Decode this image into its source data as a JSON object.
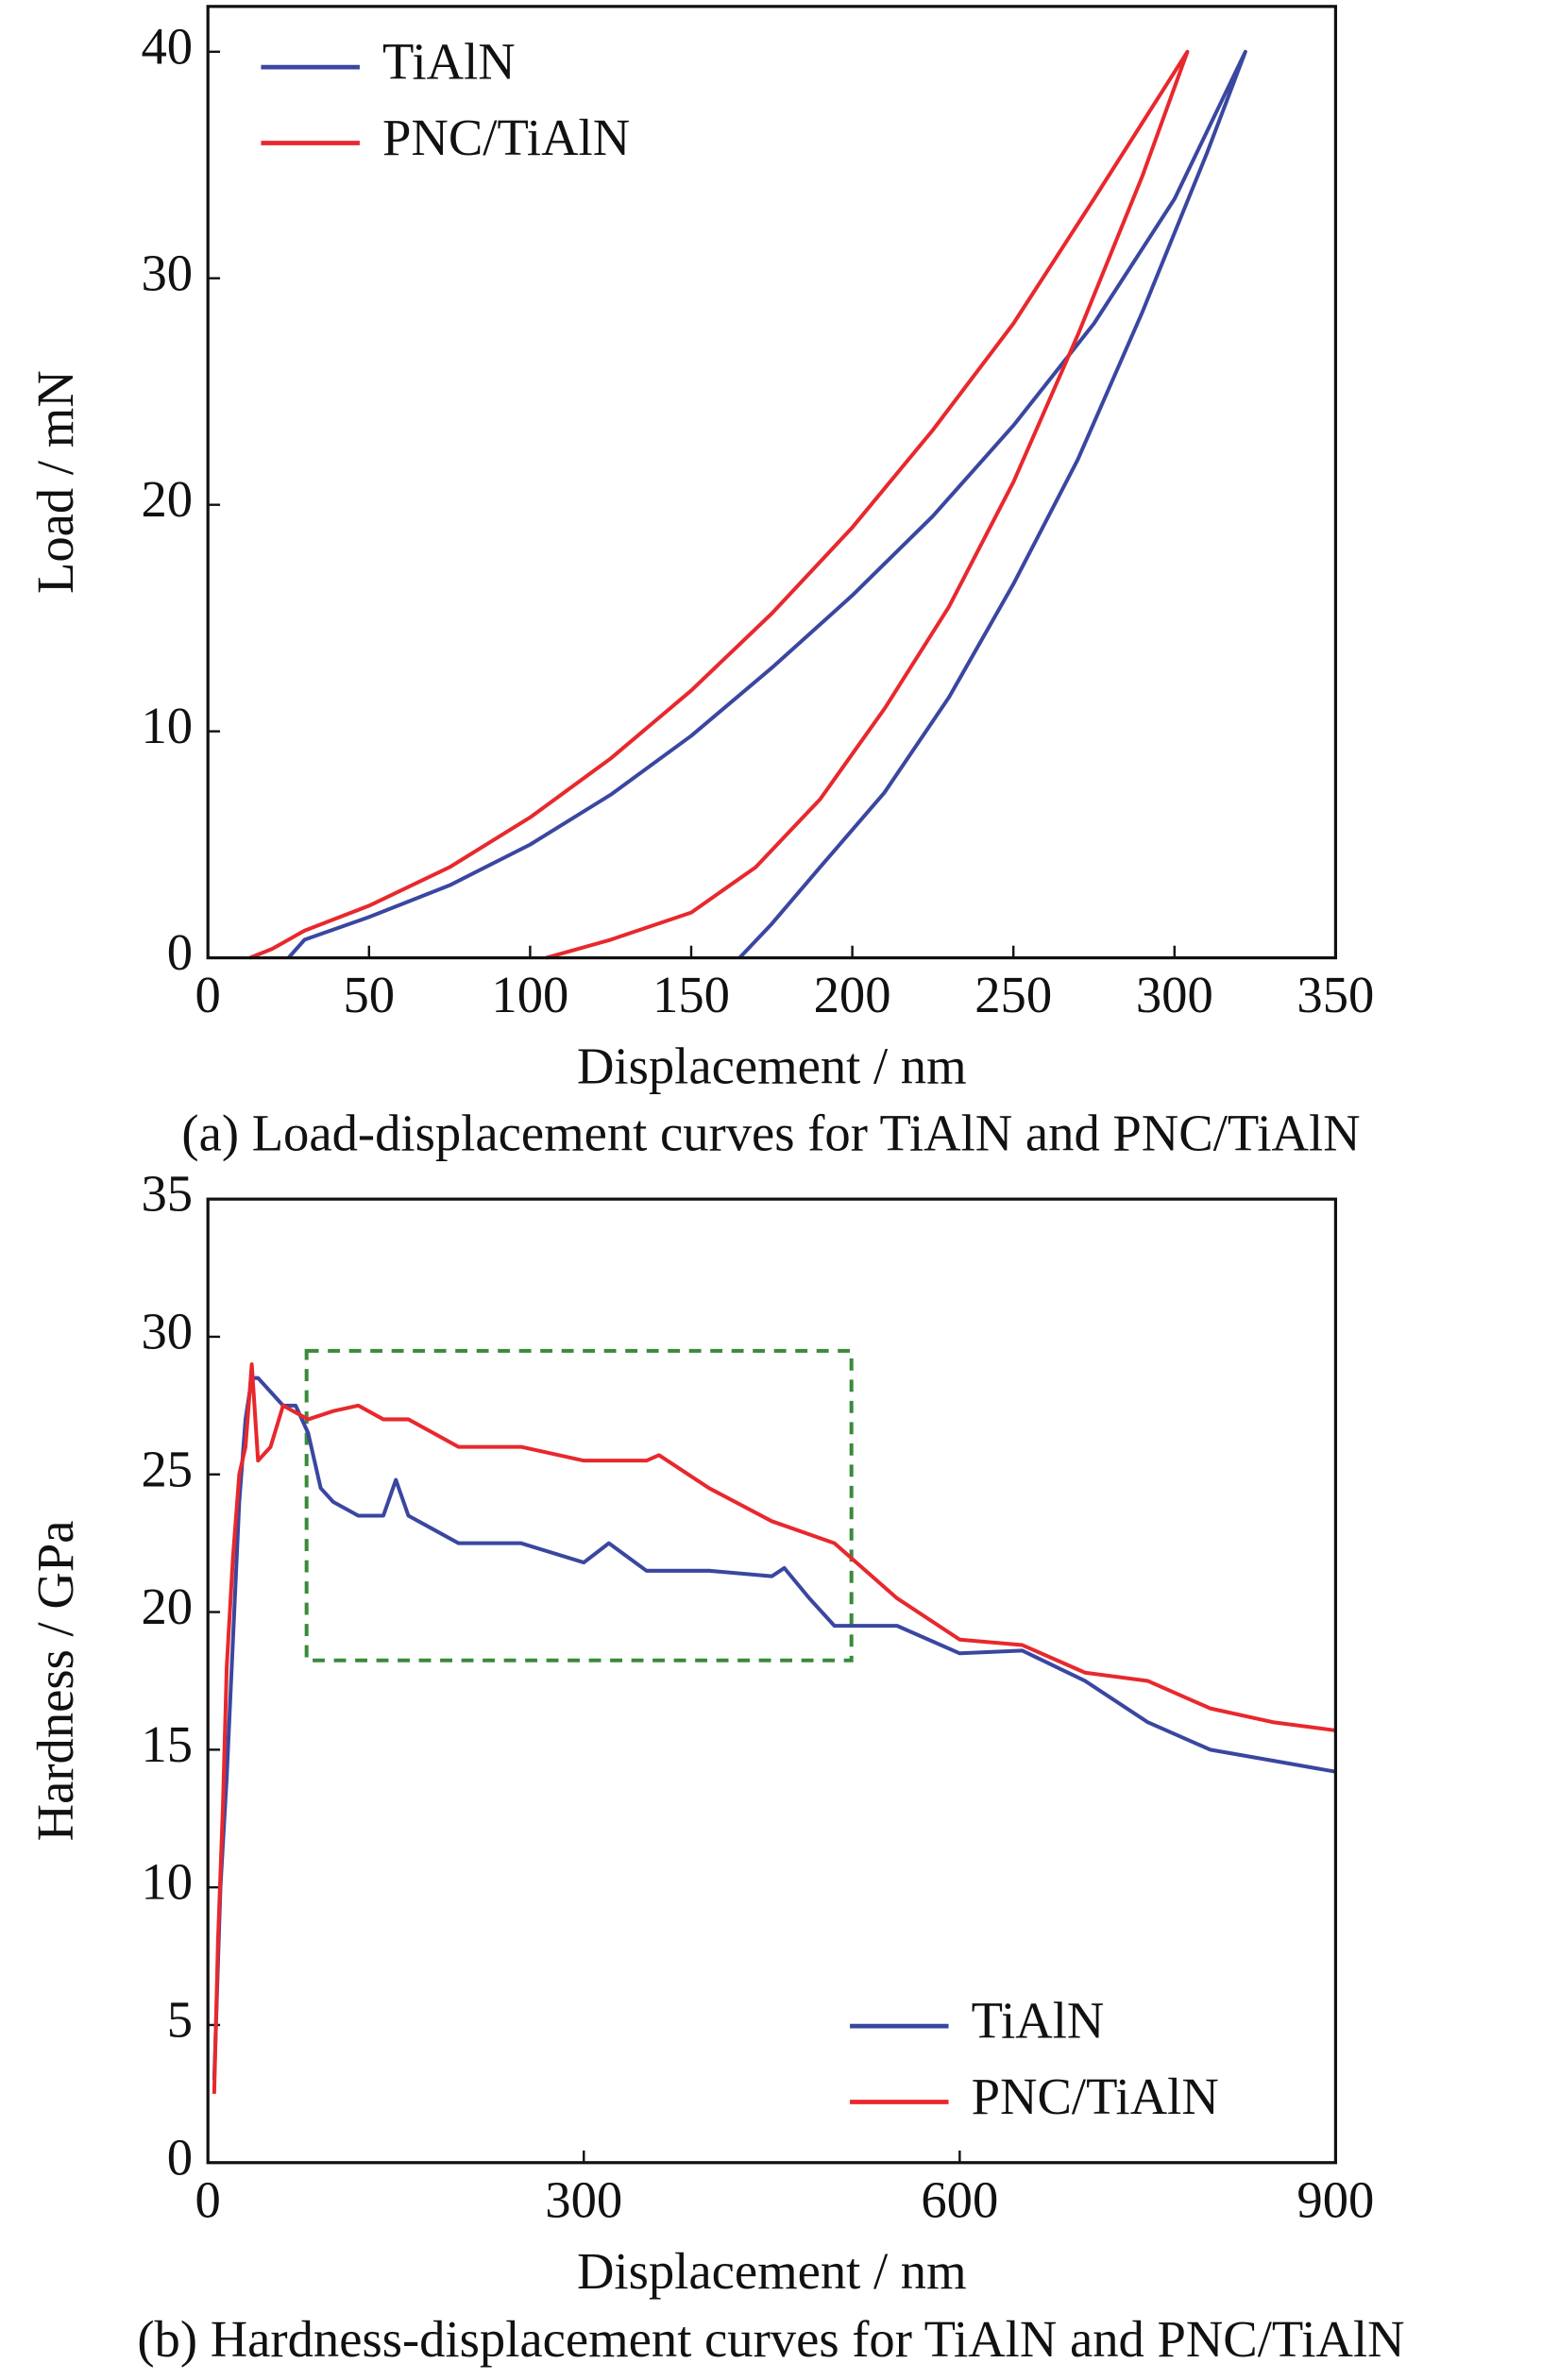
{
  "chart_data": [
    {
      "type": "line",
      "caption": "(a) Load-displacement curves for TiAlN and PNC/TiAlN",
      "xlabel": "Displacement / nm",
      "ylabel": "Load / mN",
      "xlim": [
        0,
        350
      ],
      "xticks": [
        0,
        50,
        100,
        150,
        200,
        250,
        300,
        350
      ],
      "ylim": [
        0,
        42
      ],
      "yticks": [
        0,
        10,
        20,
        30,
        40
      ],
      "legend": "upper left",
      "series": [
        {
          "name": "TiAlN",
          "color": "#3a47a0",
          "x": [
            25,
            30,
            50,
            75,
            100,
            125,
            150,
            175,
            200,
            225,
            250,
            275,
            300,
            322,
            310,
            290,
            270,
            250,
            230,
            210,
            190,
            175,
            165
          ],
          "values": [
            0,
            0.8,
            1.8,
            3.2,
            5,
            7.2,
            9.8,
            12.8,
            16,
            19.5,
            23.5,
            28,
            33.5,
            40,
            35.5,
            28.5,
            22,
            16.5,
            11.5,
            7.3,
            4,
            1.5,
            0
          ]
        },
        {
          "name": "PNC/TiAlN",
          "color": "#e8282d",
          "x": [
            13,
            20,
            30,
            50,
            75,
            100,
            125,
            150,
            175,
            200,
            225,
            250,
            275,
            304,
            290,
            270,
            250,
            230,
            210,
            190,
            170,
            150,
            125,
            105
          ],
          "values": [
            0,
            0.4,
            1.2,
            2.3,
            4,
            6.2,
            8.8,
            11.8,
            15.2,
            19,
            23.3,
            28,
            33.5,
            40,
            34.5,
            27.5,
            21,
            15.5,
            11,
            7,
            4,
            2,
            0.8,
            0
          ]
        }
      ]
    },
    {
      "type": "line",
      "caption": "(b) Hardness-displacement curves for TiAlN and PNC/TiAlN",
      "xlabel": "Displacement / nm",
      "ylabel": "Hardness / GPa",
      "xlim": [
        0,
        900
      ],
      "xticks": [
        0,
        300,
        600,
        900
      ],
      "ylim": [
        0,
        35
      ],
      "yticks": [
        0,
        5,
        10,
        15,
        20,
        25,
        30,
        35
      ],
      "legend": "lower right",
      "series": [
        {
          "name": "TiAlN",
          "color": "#3a47a0",
          "x": [
            5,
            10,
            15,
            20,
            25,
            30,
            35,
            40,
            50,
            60,
            70,
            80,
            90,
            100,
            120,
            140,
            150,
            160,
            180,
            200,
            250,
            300,
            320,
            350,
            400,
            450,
            460,
            480,
            500,
            550,
            600,
            650,
            700,
            750,
            800,
            850,
            900
          ],
          "values": [
            3,
            10,
            14,
            19,
            24,
            27,
            28.5,
            28.5,
            28,
            27.5,
            27.5,
            26.5,
            24.5,
            24,
            23.5,
            23.5,
            24.8,
            23.5,
            23,
            22.5,
            22.5,
            21.8,
            22.5,
            21.5,
            21.5,
            21.3,
            21.6,
            20.5,
            19.5,
            19.5,
            18.5,
            18.6,
            17.5,
            16,
            15,
            14.6,
            14.2
          ]
        },
        {
          "name": "PNC/TiAlN",
          "color": "#e8282d",
          "x": [
            5,
            8,
            12,
            15,
            20,
            25,
            30,
            35,
            40,
            50,
            60,
            80,
            100,
            120,
            140,
            160,
            180,
            200,
            250,
            300,
            350,
            360,
            400,
            450,
            500,
            550,
            600,
            650,
            700,
            750,
            800,
            850,
            900
          ],
          "values": [
            2.5,
            8,
            13,
            18,
            22,
            25,
            26,
            29,
            25.5,
            26,
            27.5,
            27,
            27.3,
            27.5,
            27,
            27,
            26.5,
            26,
            26,
            25.5,
            25.5,
            25.7,
            24.5,
            23.3,
            22.5,
            20.5,
            19,
            18.8,
            17.8,
            17.5,
            16.5,
            16,
            15.7
          ]
        }
      ]
    }
  ]
}
